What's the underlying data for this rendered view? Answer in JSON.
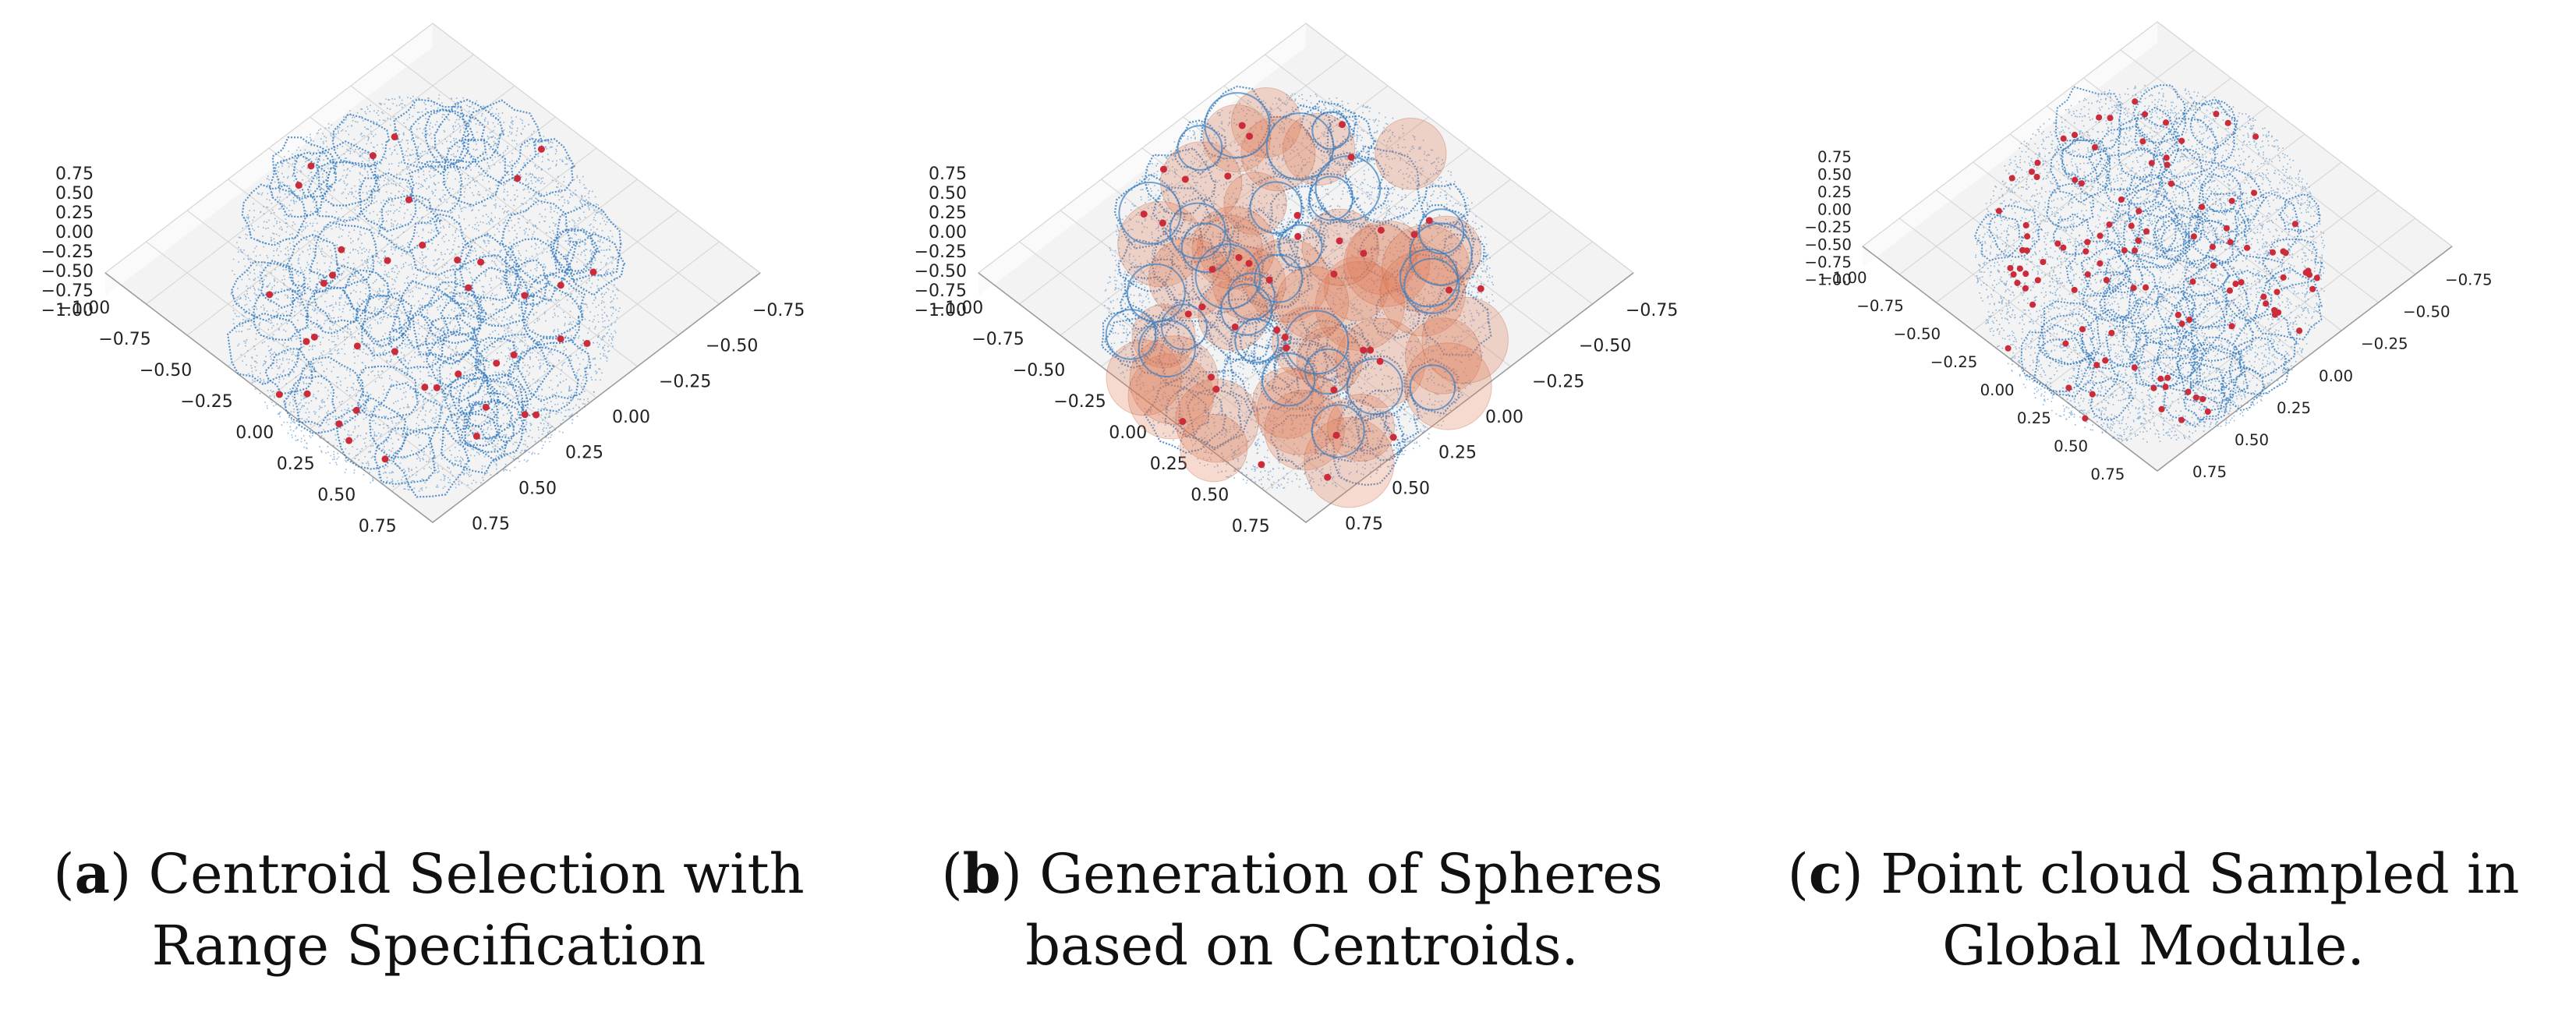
{
  "figure": {
    "panels": [
      {
        "id": "a",
        "letter": "a",
        "caption_line1": "Centroid Selection with",
        "caption_line2": "Range Specification",
        "show_spheres": false,
        "centroid_density": "low"
      },
      {
        "id": "b",
        "letter": "b",
        "caption_line1": "Generation of Spheres",
        "caption_line2": "based on Centroids.",
        "show_spheres": true,
        "centroid_density": "low"
      },
      {
        "id": "c",
        "letter": "c",
        "caption_line1": "Point cloud Sampled in",
        "caption_line2": "Global Module.",
        "show_spheres": false,
        "centroid_density": "high"
      }
    ]
  },
  "chart_data": [
    {
      "type": "scatter",
      "subtype": "3d-point-cloud",
      "projection": "top-down",
      "z_ticks": [
        "0.75",
        "0.50",
        "0.25",
        "0.00",
        "−0.25",
        "−0.50",
        "−0.75",
        "−1.00"
      ],
      "x_ticks": [
        "−1.00",
        "−0.75",
        "−0.50",
        "−0.25",
        "0.00",
        "0.25",
        "0.50",
        "0.75"
      ],
      "y_ticks": [
        "−0.75",
        "−0.50",
        "−0.25",
        "0.00",
        "0.25",
        "0.50",
        "0.75"
      ],
      "series": [
        {
          "color": "#3a7fc1",
          "marker": "point"
        },
        {
          "color": "#cc2b3a",
          "marker": "dot"
        }
      ],
      "grid": true
    },
    {
      "type": "scatter",
      "subtype": "3d-point-cloud",
      "projection": "top-down",
      "z_ticks": [
        "0.75",
        "0.50",
        "0.25",
        "0.00",
        "−0.25",
        "−0.50",
        "−0.75",
        "−1.00"
      ],
      "x_ticks": [
        "−1.00",
        "−0.75",
        "−0.50",
        "−0.25",
        "0.00",
        "0.25",
        "0.50",
        "0.75"
      ],
      "y_ticks": [
        "−0.75",
        "−0.50",
        "−0.25",
        "0.00",
        "0.25",
        "0.50",
        "0.75"
      ],
      "series": [
        {
          "color": "#3a7fc1",
          "marker": "point"
        },
        {
          "color": "#cc2b3a",
          "marker": "dot"
        },
        {
          "color": "#e07a55",
          "marker": "sphere"
        }
      ],
      "grid": true
    },
    {
      "type": "scatter",
      "subtype": "3d-point-cloud",
      "projection": "top-down",
      "z_ticks": [
        "0.75",
        "0.50",
        "0.25",
        "0.00",
        "−0.25",
        "−0.50",
        "−0.75",
        "−1.00"
      ],
      "x_ticks": [
        "−1.00",
        "−0.75",
        "−0.50",
        "−0.25",
        "0.00",
        "0.25",
        "0.50",
        "0.75"
      ],
      "y_ticks": [
        "−0.75",
        "−0.50",
        "−0.25",
        "0.00",
        "0.25",
        "0.50",
        "0.75"
      ],
      "series": [
        {
          "color": "#3a7fc1",
          "marker": "point"
        },
        {
          "color": "#cc2b3a",
          "marker": "dot"
        }
      ],
      "grid": true
    }
  ]
}
